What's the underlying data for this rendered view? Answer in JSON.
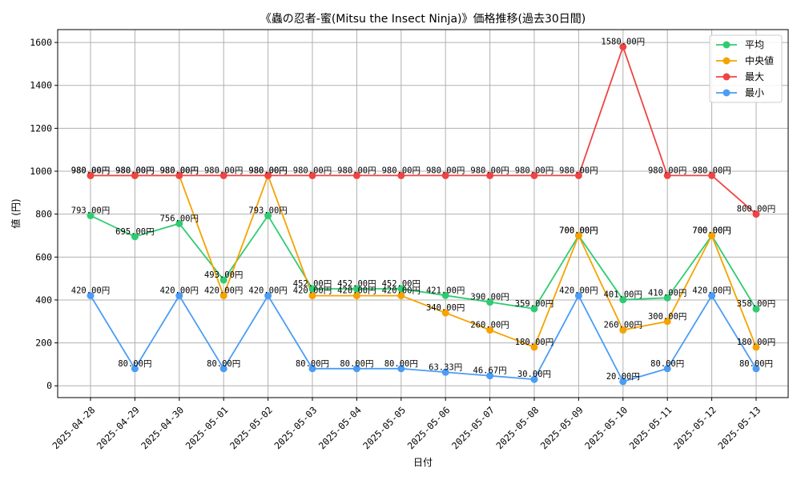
{
  "chart_data": {
    "type": "line",
    "title": "《蟲の忍者-蜜(Mitsu the Insect Ninja)》価格推移(過去30日間)",
    "xlabel": "日付",
    "ylabel": "値 (円)",
    "ylim": [
      -55,
      1660
    ],
    "yticks": [
      0,
      200,
      400,
      600,
      800,
      1000,
      1200,
      1400,
      1600
    ],
    "grid": true,
    "legend_position": "top-right",
    "categories": [
      "2025-04-28",
      "2025-04-29",
      "2025-04-30",
      "2025-05-01",
      "2025-05-02",
      "2025-05-03",
      "2025-05-04",
      "2025-05-05",
      "2025-05-06",
      "2025-05-07",
      "2025-05-08",
      "2025-05-09",
      "2025-05-10",
      "2025-05-11",
      "2025-05-12",
      "2025-05-13"
    ],
    "series": [
      {
        "name": "平均",
        "color": "#2ecc71",
        "values": [
          793,
          695,
          756,
          493,
          793,
          452,
          452,
          452,
          421,
          390,
          359,
          700,
          401,
          410,
          700,
          358
        ]
      },
      {
        "name": "中央値",
        "color": "#f5a300",
        "values": [
          980,
          980,
          980,
          420,
          980,
          420,
          420,
          420,
          340,
          260,
          180,
          700,
          260,
          300,
          700,
          180
        ]
      },
      {
        "name": "最大",
        "color": "#ef4444",
        "values": [
          980,
          980,
          980,
          980,
          980,
          980,
          980,
          980,
          980,
          980,
          980,
          980,
          1580,
          980,
          980,
          800
        ]
      },
      {
        "name": "最小",
        "color": "#4a9cf7",
        "values": [
          420,
          80,
          420,
          80,
          420,
          80,
          80,
          80,
          63.33,
          46.67,
          30,
          420,
          20,
          80,
          420,
          80
        ]
      }
    ],
    "value_suffix": "円"
  }
}
